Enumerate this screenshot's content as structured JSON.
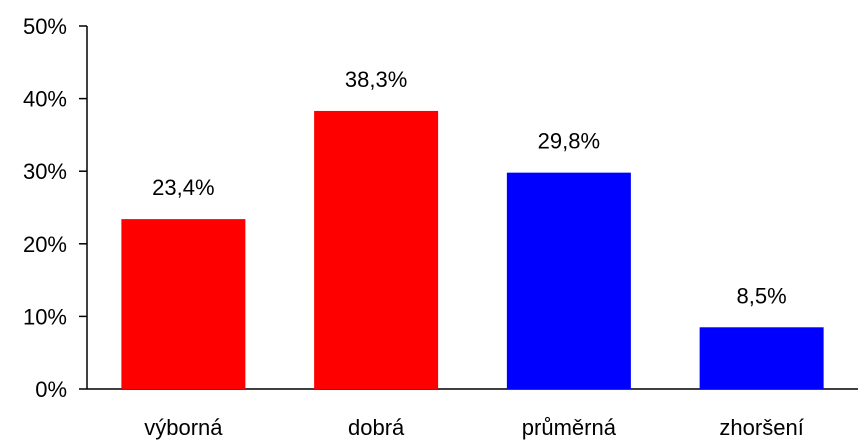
{
  "chart_data": {
    "type": "bar",
    "title": "",
    "xlabel": "",
    "ylabel": "",
    "categories": [
      "výborná",
      "dobrá",
      "průměrná",
      "zhoršení"
    ],
    "values": [
      23.4,
      38.3,
      29.8,
      8.5
    ],
    "data_labels": [
      "23,4%",
      "38,3%",
      "29,8%",
      "8,5%"
    ],
    "bar_colors": [
      "#ff0000",
      "#ff0000",
      "#0000ff",
      "#0000ff"
    ],
    "ylim": [
      0,
      50
    ],
    "yticks": [
      0,
      10,
      20,
      30,
      40,
      50
    ],
    "ytick_labels": [
      "0%",
      "10%",
      "20%",
      "30%",
      "40%",
      "50%"
    ],
    "grid": false,
    "legend": "none"
  }
}
